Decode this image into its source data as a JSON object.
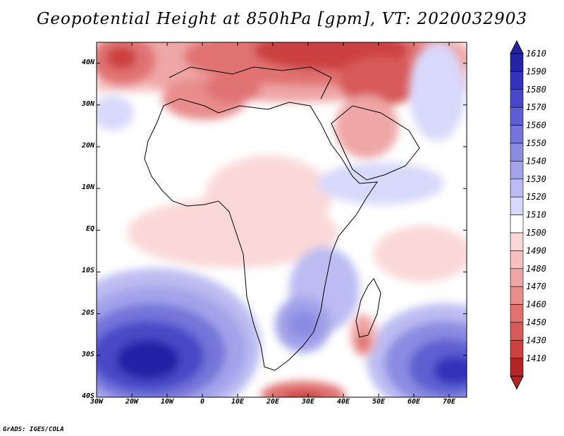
{
  "title": "Geopotential Height at 850hPa [gpm], VT: 2020032903",
  "footer": "GrADS: IGES/COLA",
  "map": {
    "region": "Africa",
    "lon_range": [
      -30,
      75
    ],
    "lat_range": [
      -40,
      45
    ],
    "lat_labels": [
      {
        "lat": 40,
        "text": "40N"
      },
      {
        "lat": 30,
        "text": "30N"
      },
      {
        "lat": 20,
        "text": "20N"
      },
      {
        "lat": 10,
        "text": "10N"
      },
      {
        "lat": 0,
        "text": "EQ"
      },
      {
        "lat": -10,
        "text": "10S"
      },
      {
        "lat": -20,
        "text": "20S"
      },
      {
        "lat": -30,
        "text": "30S"
      },
      {
        "lat": -40,
        "text": "40S"
      }
    ],
    "lon_labels": [
      {
        "lon": -30,
        "text": "30W"
      },
      {
        "lon": -20,
        "text": "20W"
      },
      {
        "lon": -10,
        "text": "10W"
      },
      {
        "lon": 0,
        "text": "0"
      },
      {
        "lon": 10,
        "text": "10E"
      },
      {
        "lon": 20,
        "text": "20E"
      },
      {
        "lon": 30,
        "text": "30E"
      },
      {
        "lon": 40,
        "text": "40E"
      },
      {
        "lon": 50,
        "text": "50E"
      },
      {
        "lon": 60,
        "text": "60E"
      },
      {
        "lon": 70,
        "text": "70E"
      }
    ]
  },
  "colorbar": {
    "levels": [
      {
        "label": "1610",
        "color": "#2323a6"
      },
      {
        "label": "1590",
        "color": "#3333bb"
      },
      {
        "label": "1580",
        "color": "#4848c8"
      },
      {
        "label": "1570",
        "color": "#5e5ed2"
      },
      {
        "label": "1560",
        "color": "#7474da"
      },
      {
        "label": "1550",
        "color": "#8b8be2"
      },
      {
        "label": "1540",
        "color": "#a3a3ea"
      },
      {
        "label": "1530",
        "color": "#bcbcf2"
      },
      {
        "label": "1520",
        "color": "#d8d8fa"
      },
      {
        "label": "1510",
        "color": "#ffffff"
      },
      {
        "label": "1500",
        "color": "#fad8d8"
      },
      {
        "label": "1490",
        "color": "#f5c0c0"
      },
      {
        "label": "1480",
        "color": "#efa6a6"
      },
      {
        "label": "1470",
        "color": "#e88c8c"
      },
      {
        "label": "1460",
        "color": "#e07272"
      },
      {
        "label": "1450",
        "color": "#d85a5a"
      },
      {
        "label": "1430",
        "color": "#cc4040"
      },
      {
        "label": "1410",
        "color": "#b52424"
      }
    ],
    "top_arrow_color": "#2323a6",
    "bottom_arrow_color": "#b52424"
  },
  "field": {
    "background_color": "#ffffff",
    "features": [
      {
        "name": "northern-low-belt",
        "value": 1430
      },
      {
        "name": "mid-east-low",
        "value": 1450
      },
      {
        "name": "atlantic-nw-low",
        "value": 1430
      },
      {
        "name": "south-atlantic-high",
        "value": 1610
      },
      {
        "name": "south-indian-high",
        "value": 1590
      },
      {
        "name": "southern-africa-high",
        "value": 1540
      },
      {
        "name": "madagascar-low",
        "value": 1470
      },
      {
        "name": "southern-ocean-low",
        "value": 1450
      }
    ]
  }
}
